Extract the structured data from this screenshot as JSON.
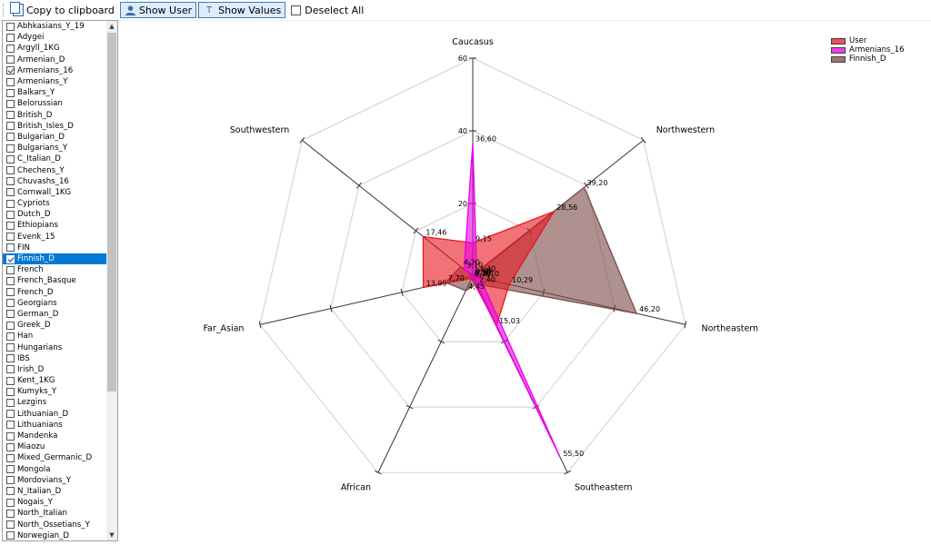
{
  "toolbar": {
    "copy_label": "Copy to clipboard",
    "show_user_label": "Show User",
    "show_values_label": "Show Values",
    "deselect_label": "Deselect All"
  },
  "populations": [
    {
      "label": "Abhkasians_Y_19",
      "checked": false
    },
    {
      "label": "Adygei",
      "checked": false
    },
    {
      "label": "Argyll_1KG",
      "checked": false
    },
    {
      "label": "Armenian_D",
      "checked": false
    },
    {
      "label": "Armenians_16",
      "checked": true
    },
    {
      "label": "Armenians_Y",
      "checked": false
    },
    {
      "label": "Balkars_Y",
      "checked": false
    },
    {
      "label": "Belorussian",
      "checked": false
    },
    {
      "label": "British_D",
      "checked": false
    },
    {
      "label": "British_Isles_D",
      "checked": false
    },
    {
      "label": "Bulgarian_D",
      "checked": false
    },
    {
      "label": "Bulgarians_Y",
      "checked": false
    },
    {
      "label": "C_Italian_D",
      "checked": false
    },
    {
      "label": "Chechens_Y",
      "checked": false
    },
    {
      "label": "Chuvashs_16",
      "checked": false
    },
    {
      "label": "Cornwall_1KG",
      "checked": false
    },
    {
      "label": "Cypriots",
      "checked": false
    },
    {
      "label": "Dutch_D",
      "checked": false
    },
    {
      "label": "Ethiopians",
      "checked": false
    },
    {
      "label": "Evenk_15",
      "checked": false
    },
    {
      "label": "FIN",
      "checked": false
    },
    {
      "label": "Finnish_D",
      "checked": true,
      "selected": true
    },
    {
      "label": "French",
      "checked": false
    },
    {
      "label": "French_Basque",
      "checked": false
    },
    {
      "label": "French_D",
      "checked": false
    },
    {
      "label": "Georgians",
      "checked": false
    },
    {
      "label": "German_D",
      "checked": false
    },
    {
      "label": "Greek_D",
      "checked": false
    },
    {
      "label": "Han",
      "checked": false
    },
    {
      "label": "Hungarians",
      "checked": false
    },
    {
      "label": "IBS",
      "checked": false
    },
    {
      "label": "Irish_D",
      "checked": false
    },
    {
      "label": "Kent_1KG",
      "checked": false
    },
    {
      "label": "Kumyks_Y",
      "checked": false
    },
    {
      "label": "Lezgins",
      "checked": false
    },
    {
      "label": "Lithuanian_D",
      "checked": false
    },
    {
      "label": "Lithuanians",
      "checked": false
    },
    {
      "label": "Mandenka",
      "checked": false
    },
    {
      "label": "Miaozu",
      "checked": false
    },
    {
      "label": "Mixed_Germanic_D",
      "checked": false
    },
    {
      "label": "Mongola",
      "checked": false
    },
    {
      "label": "Mordovians_Y",
      "checked": false
    },
    {
      "label": "N_Italian_D",
      "checked": false
    },
    {
      "label": "Nogais_Y",
      "checked": false
    },
    {
      "label": "North_Italian",
      "checked": false
    },
    {
      "label": "North_Ossetians_Y",
      "checked": false
    },
    {
      "label": "Norwegian_D",
      "checked": false
    }
  ],
  "chart_data": {
    "type": "radar",
    "axes": [
      "Caucasus",
      "Northwestern",
      "Northeastern",
      "Southeastern",
      "African",
      "Far_Asian",
      "Southwestern"
    ],
    "rlim": [
      0,
      60
    ],
    "ticks": [
      "60",
      "40",
      "20"
    ],
    "series": [
      {
        "name": "User",
        "color": "#e8161e",
        "values": [
          9.15,
          28.56,
          10.29,
          15.03,
          0.7,
          13.95,
          17.46
        ],
        "labels": [
          "9,15",
          "28,56",
          "10,29",
          "15,03",
          "0,70",
          "13,95",
          "17,46"
        ]
      },
      {
        "name": "Armenians_16",
        "color": "#e800e8",
        "values": [
          36.6,
          1.4,
          2.1,
          55.5,
          0.3,
          0.3,
          3.1
        ],
        "labels": [
          "36,60",
          "1,40",
          "2,10",
          "55,50",
          "0,30",
          "0,30",
          "3,10"
        ]
      },
      {
        "name": "Finnish_D",
        "color": "#7a4a45",
        "values": [
          0.3,
          39.2,
          46.2,
          2.4,
          4.45,
          7.7,
          4.2
        ],
        "labels": [
          "0,30",
          "39,20",
          "46,20",
          "2,40",
          "4,45",
          "7,70",
          "4,20"
        ]
      }
    ],
    "legend_position": "top-right"
  }
}
